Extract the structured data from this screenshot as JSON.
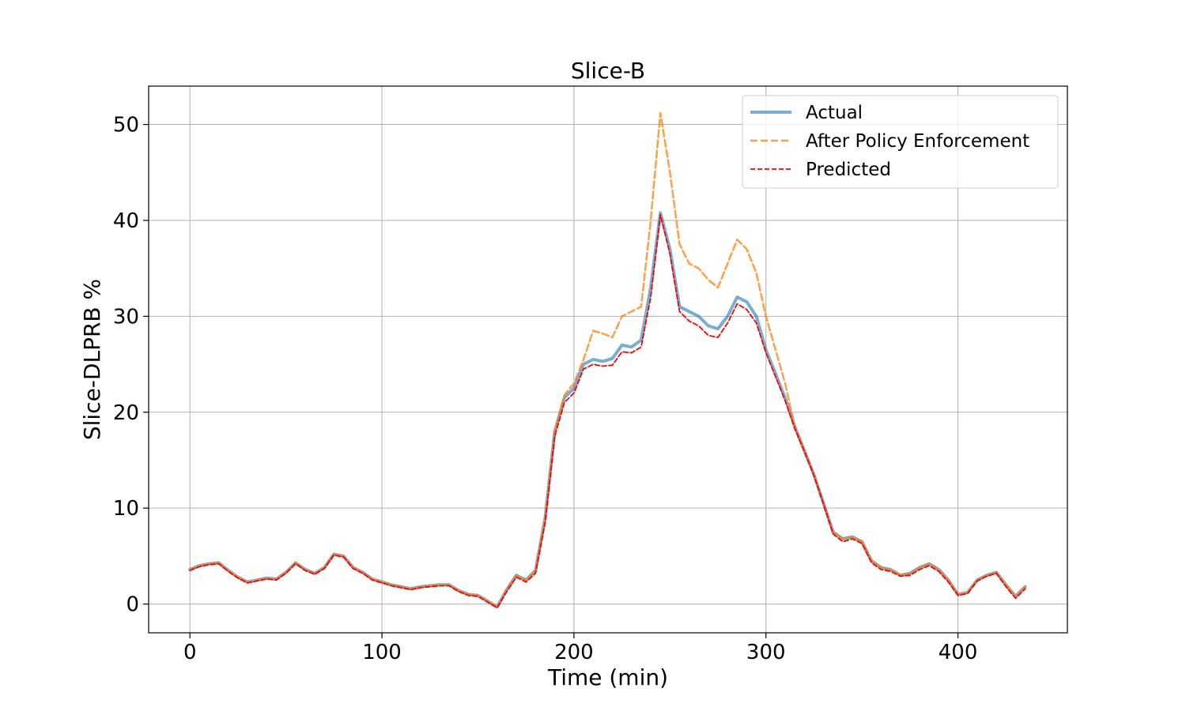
{
  "chart_data": {
    "type": "line",
    "title": "Slice-B",
    "xlabel": "Time (min)",
    "ylabel": "Slice-DLPRB %",
    "xlim": [
      -21.5,
      457
    ],
    "ylim": [
      -3,
      54
    ],
    "xticks": [
      0,
      100,
      200,
      300,
      400
    ],
    "yticks": [
      0,
      10,
      20,
      30,
      40,
      50
    ],
    "grid": true,
    "legend_position": "upper right",
    "x": [
      0,
      5,
      10,
      15,
      20,
      25,
      30,
      35,
      40,
      45,
      50,
      55,
      60,
      65,
      70,
      75,
      80,
      85,
      90,
      95,
      100,
      105,
      110,
      115,
      120,
      125,
      130,
      135,
      140,
      145,
      150,
      155,
      160,
      165,
      170,
      175,
      180,
      185,
      190,
      195,
      200,
      205,
      210,
      215,
      220,
      225,
      230,
      235,
      240,
      245,
      250,
      255,
      260,
      265,
      270,
      275,
      280,
      285,
      290,
      295,
      300,
      305,
      310,
      315,
      320,
      325,
      330,
      335,
      340,
      345,
      350,
      355,
      360,
      365,
      370,
      375,
      380,
      385,
      390,
      395,
      400,
      405,
      410,
      415,
      420,
      425,
      430,
      435
    ],
    "series": [
      {
        "name": "Actual",
        "color": "#1f77b4",
        "style": "solid",
        "values": [
          3.6,
          4.0,
          4.2,
          4.3,
          3.5,
          2.8,
          2.3,
          2.5,
          2.7,
          2.6,
          3.3,
          4.3,
          3.6,
          3.2,
          3.8,
          5.2,
          5.0,
          3.8,
          3.3,
          2.6,
          2.3,
          2.0,
          1.8,
          1.6,
          1.8,
          1.9,
          2.0,
          2.0,
          1.4,
          1.0,
          0.9,
          0.3,
          -0.3,
          1.5,
          3.0,
          2.5,
          3.5,
          9.0,
          18.0,
          21.5,
          22.5,
          25.0,
          25.5,
          25.3,
          25.6,
          27.0,
          26.8,
          27.5,
          33.0,
          40.8,
          37.0,
          31.0,
          30.5,
          30.0,
          29.0,
          28.7,
          30.0,
          32.0,
          31.5,
          30.0,
          26.5,
          24.0,
          21.5,
          18.5,
          16.0,
          13.5,
          10.5,
          7.5,
          6.8,
          7.0,
          6.5,
          4.5,
          3.8,
          3.6,
          3.0,
          3.2,
          3.8,
          4.2,
          3.6,
          2.5,
          1.0,
          1.2,
          2.5,
          3.0,
          3.3,
          2.0,
          0.8,
          1.8
        ]
      },
      {
        "name": "After Policy Enforcement",
        "color": "#ff7f0e",
        "style": "dashed",
        "values": [
          3.6,
          4.0,
          4.2,
          4.3,
          3.5,
          2.8,
          2.3,
          2.5,
          2.7,
          2.6,
          3.3,
          4.3,
          3.6,
          3.2,
          3.8,
          5.2,
          5.0,
          3.8,
          3.3,
          2.6,
          2.3,
          2.0,
          1.8,
          1.6,
          1.8,
          1.9,
          2.0,
          2.0,
          1.4,
          1.0,
          0.9,
          0.3,
          -0.3,
          1.5,
          3.0,
          2.5,
          3.5,
          9.0,
          18.0,
          21.8,
          23.0,
          25.5,
          28.5,
          28.2,
          27.8,
          30.0,
          30.5,
          31.0,
          40.0,
          51.2,
          45.0,
          37.5,
          35.5,
          35.0,
          33.8,
          33.0,
          35.5,
          38.0,
          37.0,
          34.5,
          30.0,
          26.5,
          23.0,
          18.5,
          16.0,
          13.5,
          10.5,
          7.5,
          6.8,
          7.0,
          6.5,
          4.5,
          3.8,
          3.6,
          3.0,
          3.2,
          3.8,
          4.2,
          3.6,
          2.5,
          1.0,
          1.2,
          2.5,
          3.0,
          3.3,
          2.0,
          0.8,
          1.8
        ]
      },
      {
        "name": "Predicted",
        "color": "#ff0000",
        "style": "dashed",
        "values": [
          3.5,
          3.9,
          4.1,
          4.2,
          3.4,
          2.7,
          2.2,
          2.4,
          2.6,
          2.5,
          3.2,
          4.2,
          3.5,
          3.1,
          3.7,
          5.1,
          4.9,
          3.7,
          3.2,
          2.5,
          2.2,
          1.9,
          1.7,
          1.5,
          1.7,
          1.8,
          1.9,
          1.9,
          1.3,
          0.9,
          0.8,
          0.2,
          -0.4,
          1.3,
          2.8,
          2.3,
          3.2,
          8.5,
          17.5,
          21.0,
          22.0,
          24.5,
          25.0,
          24.8,
          24.9,
          26.3,
          26.2,
          26.8,
          32.0,
          40.6,
          36.5,
          30.5,
          29.5,
          29.0,
          28.0,
          27.8,
          29.3,
          31.3,
          30.7,
          29.3,
          26.2,
          23.7,
          21.2,
          18.3,
          15.9,
          13.4,
          10.4,
          7.3,
          6.5,
          6.8,
          6.3,
          4.3,
          3.6,
          3.4,
          2.9,
          3.0,
          3.6,
          4.0,
          3.4,
          2.3,
          0.9,
          1.1,
          2.4,
          2.9,
          3.2,
          1.8,
          0.6,
          1.6
        ]
      }
    ]
  }
}
